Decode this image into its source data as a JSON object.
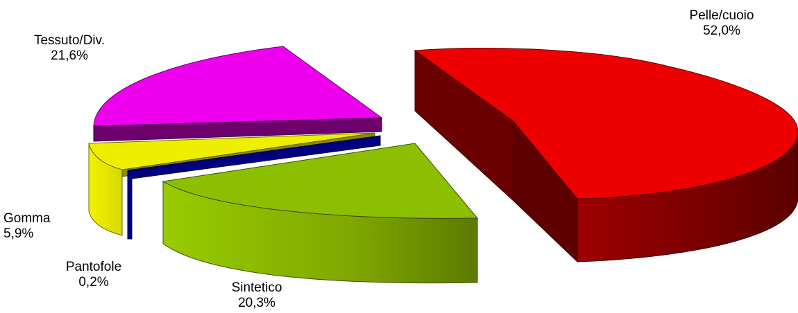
{
  "chart_data": {
    "type": "pie",
    "style": "3d-exploded",
    "slices": [
      {
        "name": "Pelle/cuoio",
        "value": 52.0,
        "label": "52,0%",
        "top_color": "#ee0000",
        "side_color": "#8a0000"
      },
      {
        "name": "Sintetico",
        "value": 20.3,
        "label": "20,3%",
        "top_color": "#8cbf00",
        "side_color": "#7aa800"
      },
      {
        "name": "Pantofole",
        "value": 0.2,
        "label": "0,2%",
        "top_color": "#000066",
        "side_color": "#000080"
      },
      {
        "name": "Gomma",
        "value": 5.9,
        "label": "5,9%",
        "top_color": "#eeee00",
        "side_color": "#e6e600"
      },
      {
        "name": "Tessuto/Div.",
        "value": 21.6,
        "label": "21,6%",
        "top_color": "#ee00ee",
        "side_color": "#6e006e"
      }
    ],
    "legend": "none"
  }
}
